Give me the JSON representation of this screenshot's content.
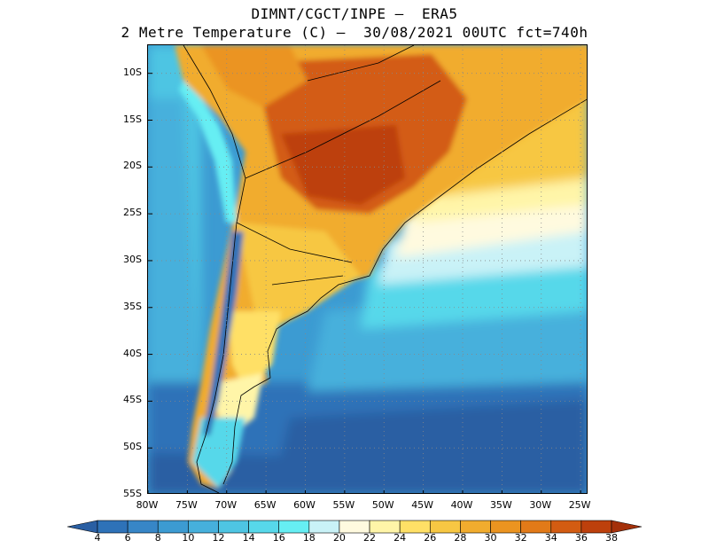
{
  "header": {
    "line1": "DIMNT/CGCT/INPE –  ERA5",
    "line2": "2 Metre Temperature (C) –  30/08/2021 00UTC fct=740h"
  },
  "axes": {
    "lat_labels": [
      "10S",
      "15S",
      "20S",
      "25S",
      "30S",
      "35S",
      "40S",
      "45S",
      "50S",
      "55S"
    ],
    "lon_labels": [
      "80W",
      "75W",
      "70W",
      "65W",
      "60W",
      "55W",
      "50W",
      "45W",
      "40W",
      "35W",
      "30W",
      "25W"
    ],
    "lat_range": [
      -55,
      -7
    ],
    "lon_range": [
      -80,
      -24
    ]
  },
  "colorbar": {
    "labels": [
      "4",
      "6",
      "8",
      "10",
      "12",
      "14",
      "16",
      "18",
      "20",
      "22",
      "24",
      "26",
      "28",
      "30",
      "32",
      "34",
      "36",
      "38"
    ],
    "colors": [
      "#2a5fa3",
      "#2e72b8",
      "#3786c7",
      "#3c9bd2",
      "#46b0dc",
      "#4ec5e3",
      "#57d8ea",
      "#66eef3",
      "#c9f2f7",
      "#fffadf",
      "#fff5a8",
      "#ffe066",
      "#f7c743",
      "#f1ac2e",
      "#eb9420",
      "#e27a18",
      "#d35c12",
      "#bd400c",
      "#a4300a"
    ]
  }
}
